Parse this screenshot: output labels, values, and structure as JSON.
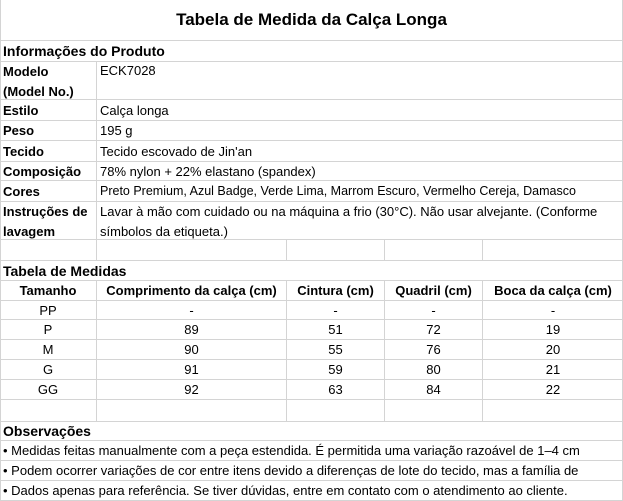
{
  "title": "Tabela de Medida da Calça Longa",
  "product": {
    "section_title": "Informações do Produto",
    "rows": [
      {
        "label": "Modelo (Model No.)",
        "value": "ECK7028"
      },
      {
        "label": "Estilo",
        "value": "Calça longa"
      },
      {
        "label": "Peso",
        "value": "195 g"
      },
      {
        "label": "Tecido",
        "value": "Tecido escovado de Jin'an"
      },
      {
        "label": "Composição",
        "value": "78% nylon + 22% elastano (spandex)"
      },
      {
        "label": "Cores",
        "value": "Preto Premium, Azul Badge, Verde Lima, Marrom Escuro, Vermelho Cereja, Damasco"
      },
      {
        "label": "Instruções de lavagem",
        "value": "Lavar à mão com cuidado ou na máquina a frio (30°C). Não usar alvejante. (Conforme símbolos da etiqueta.)"
      }
    ]
  },
  "measures": {
    "section_title": "Tabela de Medidas",
    "headers": [
      "Tamanho",
      "Comprimento da calça (cm)",
      "Cintura (cm)",
      "Quadril (cm)",
      "Boca da calça (cm)"
    ],
    "rows": [
      [
        "PP",
        "-",
        "-",
        "-",
        "-"
      ],
      [
        "P",
        "89",
        "51",
        "72",
        "19"
      ],
      [
        "M",
        "90",
        "55",
        "76",
        "20"
      ],
      [
        "G",
        "91",
        "59",
        "80",
        "21"
      ],
      [
        "GG",
        "92",
        "63",
        "84",
        "22"
      ]
    ]
  },
  "notes": {
    "section_title": "Observações",
    "items": [
      "• Medidas feitas manualmente com a peça estendida. É permitida uma variação razoável de 1–4 cm",
      "• Podem ocorrer variações de cor entre itens devido a diferenças de lote do tecido, mas a família de",
      "• Dados apenas para referência. Se tiver dúvidas, entre em contato com o atendimento ao cliente."
    ]
  }
}
